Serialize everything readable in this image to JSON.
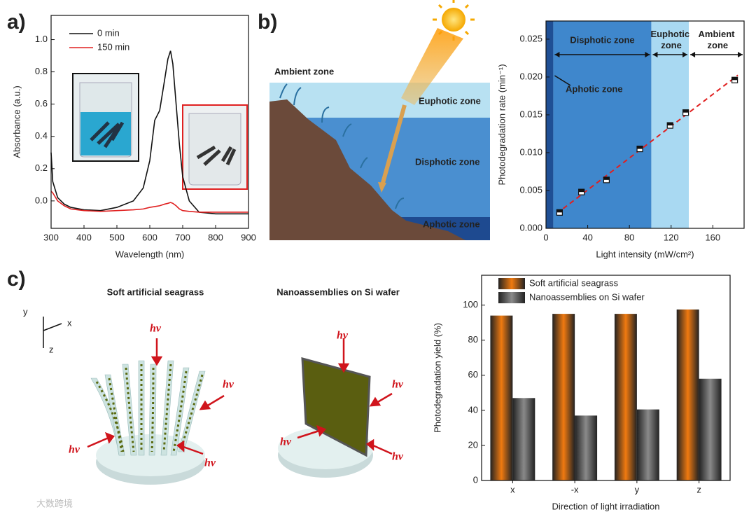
{
  "panel_labels": [
    "a)",
    "b)",
    "c)"
  ],
  "chart_data": [
    {
      "type": "line",
      "xlabel": "Wavelength (nm)",
      "ylabel": "Absorbance (a.u.)",
      "x": [
        300,
        305,
        320,
        340,
        360,
        400,
        450,
        500,
        550,
        580,
        600,
        615,
        630,
        645,
        655,
        663,
        670,
        680,
        690,
        700,
        720,
        750,
        800,
        900
      ],
      "series": [
        {
          "name": "0 min",
          "color": "#111111",
          "values": [
            0.3,
            0.12,
            0.02,
            -0.02,
            -0.04,
            -0.055,
            -0.06,
            -0.04,
            0,
            0.08,
            0.25,
            0.5,
            0.56,
            0.75,
            0.88,
            0.93,
            0.85,
            0.6,
            0.35,
            0.15,
            0,
            -0.07,
            -0.08,
            -0.08
          ]
        },
        {
          "name": "150 min",
          "color": "#e02020",
          "values": [
            0.06,
            0.05,
            0.0,
            -0.03,
            -0.05,
            -0.06,
            -0.065,
            -0.06,
            -0.055,
            -0.05,
            -0.04,
            -0.035,
            -0.03,
            -0.02,
            -0.015,
            -0.01,
            -0.015,
            -0.03,
            -0.05,
            -0.06,
            -0.065,
            -0.07,
            -0.07,
            -0.07
          ]
        }
      ],
      "xlim": [
        300,
        900
      ],
      "xticks": [
        300,
        400,
        500,
        600,
        700,
        800,
        900
      ],
      "ylim": [
        -0.17,
        1.15
      ],
      "yticks": [
        {
          "value": 1,
          "label": "1.0"
        },
        0.8,
        0.6,
        0.4,
        0.2,
        {
          "value": 0,
          "label": "0.0"
        }
      ],
      "legend": "upper left"
    },
    {
      "type": "scatter",
      "xlabel": "Light intensity (mW/cm²)",
      "ylabel": "Photodegradation rate (min⁻¹)",
      "x": [
        13,
        34,
        58,
        90,
        119,
        134,
        181
      ],
      "values": [
        0.0021,
        0.0048,
        0.0064,
        0.0105,
        0.0136,
        0.0153,
        0.0196
      ],
      "fit_color": "#e02020",
      "xlim": [
        0,
        190
      ],
      "xticks": [
        0,
        40,
        80,
        120,
        160
      ],
      "ylim": [
        0,
        0.0274
      ],
      "yticks": [
        {
          "value": 0,
          "label": "0.000"
        },
        0.005,
        {
          "value": 0.01,
          "label": "0.010"
        },
        0.015,
        {
          "value": 0.02,
          "label": "0.020"
        },
        0.025
      ],
      "zones": [
        {
          "name": "Aphotic zone",
          "x": [
            0,
            7
          ],
          "color": "#1f4f94"
        },
        {
          "name": "Disphotic zone",
          "x": [
            7,
            101
          ],
          "color": "#3f87cc"
        },
        {
          "name": "Euphotic zone",
          "x": [
            101,
            137
          ],
          "color": "#a9d9f2"
        },
        {
          "name": "Ambient zone",
          "x": [
            137,
            190
          ],
          "color": "#ffffff"
        }
      ]
    },
    {
      "type": "bar",
      "xlabel": "Direction of light irradiation",
      "ylabel": "Photodegradation yield (%)",
      "categories": [
        "x",
        "-x",
        "y",
        "z"
      ],
      "series": [
        {
          "name": "Soft artificial seagrass",
          "color": "#f07a10",
          "values": [
            94,
            95,
            95,
            97.5
          ]
        },
        {
          "name": "Nanoassemblies on Si wafer",
          "color": "#8a8a8a",
          "values": [
            47,
            37,
            40.5,
            58
          ]
        }
      ],
      "ylim": [
        0,
        117
      ],
      "yticks": [
        0,
        20,
        40,
        60,
        80,
        100
      ],
      "legend": "upper left"
    }
  ],
  "diagram_b": {
    "zones": [
      "Ambient zone",
      "Euphotic zone",
      "Disphotic zone",
      "Aphotic zone"
    ]
  },
  "diagram_c": {
    "axes": [
      "y",
      "x",
      "z"
    ],
    "titles": [
      "Soft artificial seagrass",
      "Nanoassemblies on Si wafer"
    ],
    "light": "hv"
  },
  "watermark": "大数跨境"
}
